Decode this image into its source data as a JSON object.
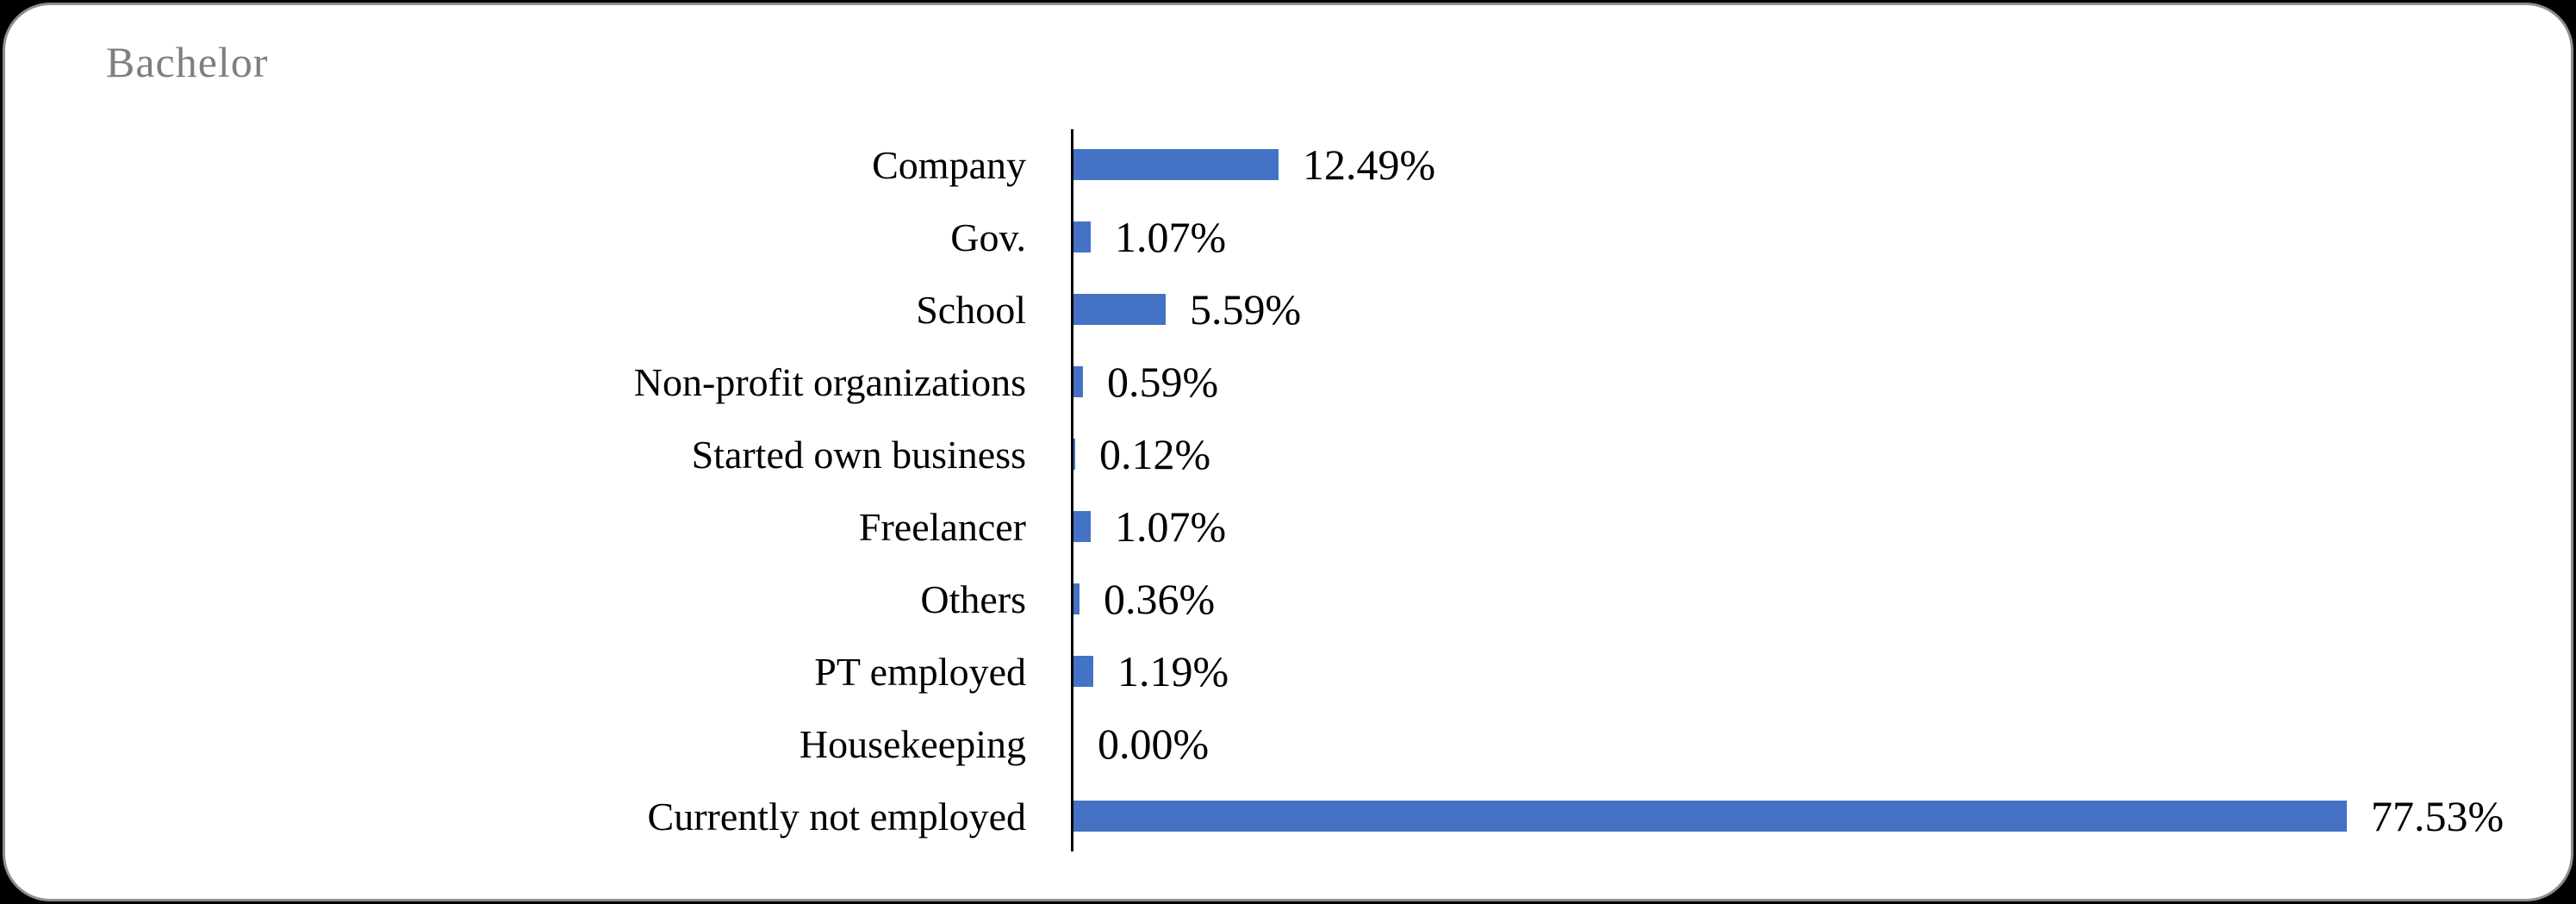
{
  "window": {
    "background": "#000000",
    "card_background": "#ffffff",
    "card_border_color": "#8e8e8e"
  },
  "chart_data": {
    "type": "bar",
    "orientation": "horizontal",
    "title": "Bachelor",
    "title_color": "#7f7f7f",
    "bar_color": "#4472C4",
    "axis_color": "#000000",
    "grid": false,
    "legend": false,
    "xlim": [
      0,
      80
    ],
    "categories": [
      "Company",
      "Gov.",
      "School",
      "Non-profit organizations",
      "Started own business",
      "Freelancer",
      "Others",
      "PT employed",
      "Housekeeping",
      "Currently not employed"
    ],
    "values": [
      12.49,
      1.07,
      5.59,
      0.59,
      0.12,
      1.07,
      0.36,
      1.19,
      0.0,
      77.53
    ],
    "value_labels": [
      "12.49%",
      "1.07%",
      "5.59%",
      "0.59%",
      "0.12%",
      "1.07%",
      "0.36%",
      "1.19%",
      "0.00%",
      "77.53%"
    ]
  }
}
